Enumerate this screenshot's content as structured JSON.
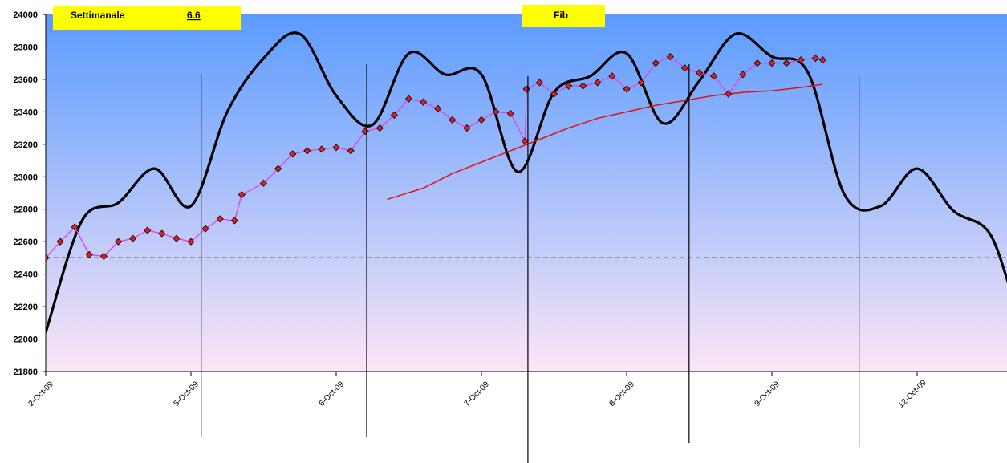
{
  "chart_data": {
    "type": "line",
    "labels": {
      "left": "Settimanale",
      "value": "6.6",
      "center": "Fib"
    },
    "x_tick_labels": [
      "2-Oct-09",
      "5-Oct-09",
      "6-Oct-09",
      "7-Oct-09",
      "8-Oct-09",
      "9-Oct-09",
      "12-Oct-09"
    ],
    "ylim": [
      21800,
      24000
    ],
    "y_ticks": [
      21800,
      22000,
      22200,
      22400,
      22600,
      22800,
      23000,
      23200,
      23400,
      23600,
      23800,
      24000
    ],
    "grid": false,
    "reference_level": 22500,
    "colors": {
      "background_top": "#5b9bff",
      "background_bottom": "#fbe6f6",
      "cycle_line": "#000000",
      "price_line": "#e040e0",
      "price_marker": "#e02020",
      "average_line": "#e01010",
      "label_box": "#ffff00"
    },
    "series": [
      {
        "style": "thick-black-cycle",
        "x": [
          0,
          0.25,
          0.5,
          0.75,
          1.0,
          1.25,
          1.5,
          1.75,
          2.0,
          2.25,
          2.5,
          2.75,
          3.0,
          3.25,
          3.5,
          3.75,
          4.0,
          4.25,
          4.5,
          4.75,
          5.0,
          5.25,
          5.5,
          5.75,
          6.0,
          6.25,
          6.5,
          6.7,
          6.9
        ],
        "values": [
          22040,
          22730,
          22840,
          23050,
          22820,
          23400,
          23730,
          23880,
          23500,
          23320,
          23760,
          23630,
          23630,
          23030,
          23520,
          23620,
          23760,
          23330,
          23590,
          23880,
          23740,
          23640,
          22890,
          22820,
          23050,
          22790,
          22650,
          22180,
          22060
        ]
      },
      {
        "style": "price-with-markers",
        "x": [
          0,
          0.1,
          0.2,
          0.3,
          0.4,
          0.5,
          0.6,
          0.7,
          0.8,
          0.9,
          1.0,
          1.1,
          1.2,
          1.3,
          1.35,
          1.5,
          1.6,
          1.7,
          1.8,
          1.9,
          2.0,
          2.1,
          2.2,
          2.3,
          2.4,
          2.5,
          2.6,
          2.7,
          2.8,
          2.9,
          3.0,
          3.1,
          3.2,
          3.3,
          3.31,
          3.4,
          3.5,
          3.6,
          3.7,
          3.8,
          3.9,
          4.0,
          4.1,
          4.2,
          4.3,
          4.4,
          4.5,
          4.6,
          4.7,
          4.8,
          4.9,
          5.0,
          5.1,
          5.2,
          5.3,
          5.35
        ],
        "values": [
          22500,
          22600,
          22690,
          22520,
          22510,
          22600,
          22620,
          22670,
          22650,
          22620,
          22600,
          22680,
          22740,
          22730,
          22890,
          22960,
          23050,
          23140,
          23160,
          23170,
          23180,
          23160,
          23280,
          23300,
          23380,
          23480,
          23460,
          23420,
          23350,
          23300,
          23350,
          23400,
          23390,
          23220,
          23540,
          23580,
          23510,
          23560,
          23560,
          23580,
          23620,
          23540,
          23580,
          23700,
          23740,
          23670,
          23640,
          23620,
          23510,
          23630,
          23700,
          23700,
          23700,
          23720,
          23730,
          23720
        ]
      },
      {
        "style": "moving-average",
        "x": [
          2.35,
          2.6,
          2.8,
          3.0,
          3.2,
          3.4,
          3.6,
          3.8,
          4.0,
          4.2,
          4.4,
          4.6,
          4.8,
          5.0,
          5.2,
          5.35
        ],
        "values": [
          22860,
          22930,
          23020,
          23090,
          23160,
          23230,
          23300,
          23360,
          23400,
          23440,
          23470,
          23500,
          23520,
          23530,
          23550,
          23570
        ]
      }
    ]
  }
}
